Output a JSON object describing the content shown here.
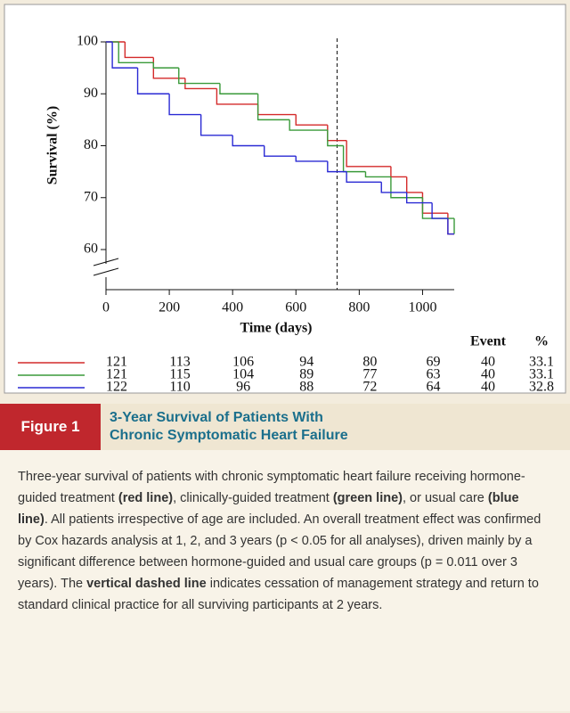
{
  "chart_data": {
    "type": "step",
    "ylabel": "Survival (%)",
    "xlabel": "Time (days)",
    "xlim": [
      0,
      1100
    ],
    "ylim": [
      60,
      100
    ],
    "xticks": [
      0,
      200,
      400,
      600,
      800,
      1000
    ],
    "yticks": [
      60,
      70,
      80,
      90,
      100
    ],
    "vline": 730,
    "axis_break": true,
    "risk_x": [
      0,
      200,
      400,
      600,
      800,
      1000
    ],
    "event_header": "Event",
    "percent_header": "%",
    "series": [
      {
        "color": "#d42a2a",
        "x": [
          0,
          60,
          150,
          250,
          350,
          480,
          600,
          700,
          760,
          900,
          950,
          1000,
          1080,
          1100
        ],
        "values": [
          100,
          97,
          93,
          91,
          88,
          86,
          84,
          81,
          76,
          74,
          71,
          67,
          63,
          63
        ],
        "at_risk": [
          121,
          113,
          106,
          94,
          80,
          69
        ],
        "event": 40,
        "percent": 33.1
      },
      {
        "color": "#3a9a3a",
        "x": [
          0,
          40,
          150,
          230,
          360,
          480,
          580,
          700,
          750,
          820,
          900,
          1000,
          1100
        ],
        "values": [
          100,
          96,
          95,
          92,
          90,
          85,
          83,
          80,
          75,
          74,
          70,
          66,
          63
        ],
        "at_risk": [
          121,
          115,
          104,
          89,
          77,
          63
        ],
        "event": 40,
        "percent": 33.1
      },
      {
        "color": "#2a2ad4",
        "x": [
          0,
          20,
          100,
          200,
          300,
          400,
          500,
          600,
          700,
          760,
          870,
          950,
          1030,
          1080,
          1100
        ],
        "values": [
          100,
          95,
          90,
          86,
          82,
          80,
          78,
          77,
          75,
          73,
          71,
          69,
          66,
          63,
          63
        ],
        "at_risk": [
          122,
          110,
          96,
          88,
          72,
          64
        ],
        "event": 40,
        "percent": 32.8
      }
    ]
  },
  "figure": {
    "label": "Figure 1",
    "title_lines": [
      "3-Year Survival of Patients With",
      "Chronic Symptomatic Heart Failure"
    ],
    "caption": [
      {
        "text": "Three-year survival of patients with chronic symptomatic heart failure receiving hormone-guided treatment ",
        "bold": false
      },
      {
        "text": "(red line)",
        "bold": true
      },
      {
        "text": ", clinically-guided treatment ",
        "bold": false
      },
      {
        "text": "(green line)",
        "bold": true
      },
      {
        "text": ", or usual care ",
        "bold": false
      },
      {
        "text": "(blue line)",
        "bold": true
      },
      {
        "text": ". All patients irrespective of age are included. An overall treatment effect was confirmed by Cox hazards analysis at 1, 2, and 3 years (p < 0.05 for all analyses), driven mainly by a significant difference between hormone-guided and usual care groups (p = 0.011 over 3 years). The ",
        "bold": false
      },
      {
        "text": "vertical dashed line",
        "bold": true
      },
      {
        "text": " indicates cessation of management strategy and return to standard clinical practice for all surviving participants at 2 years.",
        "bold": false
      }
    ]
  }
}
